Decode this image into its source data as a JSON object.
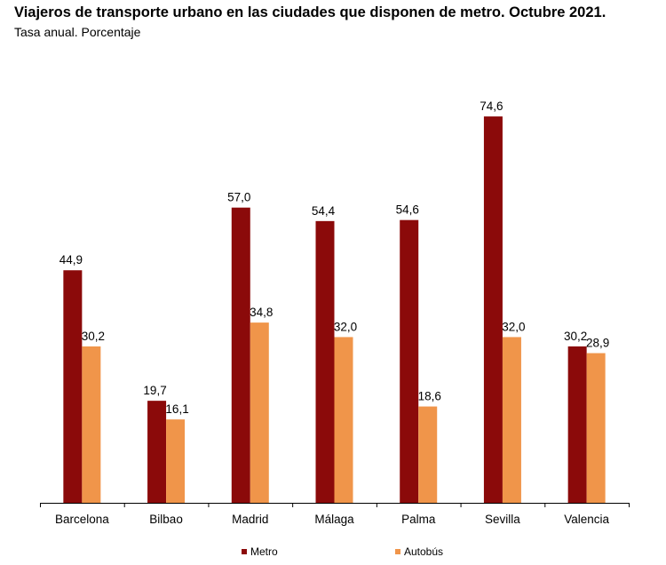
{
  "header": {
    "title": "Viajeros de transporte urbano en las ciudades que disponen de metro. Octubre 2021.",
    "subtitle": "Tasa anual. Porcentaje"
  },
  "chart_data": {
    "type": "bar",
    "title": "Viajeros de transporte urbano en las ciudades que disponen de metro. Octubre 2021.",
    "subtitle": "Tasa anual. Porcentaje",
    "categories": [
      "Barcelona",
      "Bilbao",
      "Madrid",
      "Málaga",
      "Palma",
      "Sevilla",
      "Valencia"
    ],
    "series": [
      {
        "name": "Metro",
        "color": "#8b0a0a",
        "values": [
          44.9,
          19.7,
          57.0,
          54.4,
          54.6,
          74.6,
          30.2
        ],
        "labels": [
          "44,9",
          "19,7",
          "57,0",
          "54,4",
          "54,6",
          "74,6",
          "30,2"
        ]
      },
      {
        "name": "Autobús",
        "color": "#f0954a",
        "values": [
          30.2,
          16.1,
          34.8,
          32.0,
          18.6,
          32.0,
          28.9
        ],
        "labels": [
          "30,2",
          "16,1",
          "34,8",
          "32,0",
          "18,6",
          "32,0",
          "28,9"
        ]
      }
    ],
    "xlabel": "",
    "ylabel": "",
    "ylim": [
      0,
      80
    ],
    "grid": false,
    "legend": "bottom"
  }
}
